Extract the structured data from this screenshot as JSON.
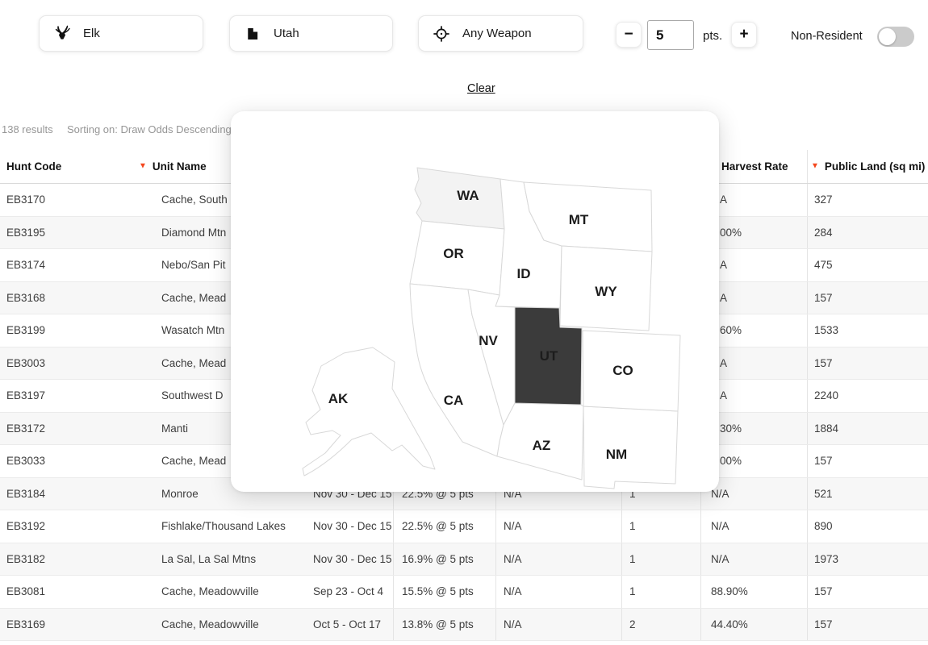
{
  "filter_bar": {
    "species_button": {
      "label": "Elk"
    },
    "state_button": {
      "label": "Utah"
    },
    "weapon_button": {
      "label": "Any Weapon"
    },
    "points_stepper": {
      "minus": "−",
      "value": "5",
      "unit": "pts.",
      "plus": "+"
    },
    "residency_toggle": {
      "label": "Non-Resident",
      "on": false
    }
  },
  "clear_link": "Clear",
  "results_bar": {
    "count": "138 results",
    "sorting": "Sorting on: Draw Odds Descending"
  },
  "table": {
    "sort_arrow_char": "▼",
    "columns": [
      {
        "id": "hunt-code",
        "label": "Hunt Code",
        "sort_arrow": false
      },
      {
        "id": "unit-name",
        "label": "Unit Name",
        "sort_arrow": true
      },
      {
        "id": "season",
        "label": "",
        "sort_arrow": false
      },
      {
        "id": "draw-odds",
        "label": "",
        "sort_arrow": false
      },
      {
        "id": "col-5",
        "label": "",
        "sort_arrow": false
      },
      {
        "id": "col-6",
        "label": "",
        "sort_arrow": false
      },
      {
        "id": "harvest-rate",
        "label": "Harvest Rate",
        "sort_arrow": false
      },
      {
        "id": "public-land",
        "label": "Public Land (sq mi)",
        "sort_arrow": true
      }
    ],
    "rows": [
      {
        "covered": true,
        "cells": [
          "EB3170",
          "Cache, South",
          "",
          "",
          "",
          "",
          "A",
          "327"
        ]
      },
      {
        "covered": true,
        "cells": [
          "EB3195",
          "Diamond Mtn",
          "",
          "",
          "",
          "",
          "00%",
          "284"
        ]
      },
      {
        "covered": true,
        "cells": [
          "EB3174",
          "Nebo/San Pit",
          "",
          "",
          "",
          "",
          "A",
          "475"
        ]
      },
      {
        "covered": true,
        "cells": [
          "EB3168",
          "Cache, Mead",
          "",
          "",
          "",
          "",
          "A",
          "157"
        ]
      },
      {
        "covered": true,
        "cells": [
          "EB3199",
          "Wasatch Mtn",
          "",
          "",
          "",
          "",
          "60%",
          "1533"
        ]
      },
      {
        "covered": true,
        "cells": [
          "EB3003",
          "Cache, Mead",
          "",
          "",
          "",
          "",
          "A",
          "157"
        ]
      },
      {
        "covered": true,
        "cells": [
          "EB3197",
          "Southwest D",
          "",
          "",
          "",
          "",
          "A",
          "2240"
        ]
      },
      {
        "covered": true,
        "cells": [
          "EB3172",
          "Manti",
          "",
          "",
          "",
          "",
          "30%",
          "1884"
        ]
      },
      {
        "covered": true,
        "cells": [
          "EB3033",
          "Cache, Mead",
          "",
          "",
          "",
          "",
          "00%",
          "157"
        ]
      },
      {
        "covered": false,
        "cells": [
          "EB3184",
          "Monroe",
          "Nov 30 - Dec 15",
          "22.5% @ 5 pts",
          "N/A",
          "1",
          "N/A",
          "521"
        ]
      },
      {
        "covered": false,
        "cells": [
          "EB3192",
          "Fishlake/Thousand Lakes",
          "Nov 30 - Dec 15",
          "22.5% @ 5 pts",
          "N/A",
          "1",
          "N/A",
          "890"
        ]
      },
      {
        "covered": false,
        "cells": [
          "EB3182",
          "La Sal, La Sal Mtns",
          "Nov 30 - Dec 15",
          "16.9% @ 5 pts",
          "N/A",
          "1",
          "N/A",
          "1973"
        ]
      },
      {
        "covered": false,
        "cells": [
          "EB3081",
          "Cache, Meadowville",
          "Sep 23 - Oct 4",
          "15.5% @ 5 pts",
          "N/A",
          "1",
          "88.90%",
          "157"
        ]
      },
      {
        "covered": false,
        "cells": [
          "EB3169",
          "Cache, Meadowville",
          "Oct 5 - Oct 17",
          "13.8% @ 5 pts",
          "N/A",
          "2",
          "44.40%",
          "157"
        ]
      }
    ]
  },
  "map_modal": {
    "highlighted_state": "UT",
    "states": [
      {
        "abbr": "AK"
      },
      {
        "abbr": "WA"
      },
      {
        "abbr": "OR"
      },
      {
        "abbr": "CA"
      },
      {
        "abbr": "ID"
      },
      {
        "abbr": "MT"
      },
      {
        "abbr": "WY"
      },
      {
        "abbr": "NV"
      },
      {
        "abbr": "AZ"
      },
      {
        "abbr": "NM"
      },
      {
        "abbr": "CO"
      },
      {
        "abbr": "UT"
      }
    ]
  },
  "colors": {
    "accent": "#f4471e",
    "highlight_state_fill": "#3b3b3b",
    "wa_fill": "#f3f3f3",
    "state_fill": "#ffffff",
    "state_stroke": "#d8d8d8",
    "stripe": "#f7f7f7"
  }
}
